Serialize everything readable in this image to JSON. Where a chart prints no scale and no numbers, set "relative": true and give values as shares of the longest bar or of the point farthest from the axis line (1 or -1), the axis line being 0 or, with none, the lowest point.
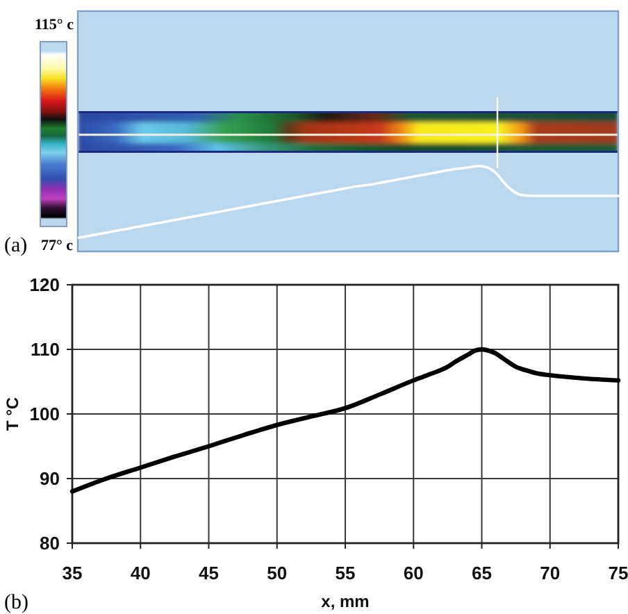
{
  "chart_data": [
    {
      "type": "line",
      "relative": true,
      "annotations": [
        "115° c",
        "77° c",
        "(a)"
      ],
      "color": "#ffffff",
      "categories": [
        null,
        null,
        null,
        null,
        null,
        null,
        null,
        null,
        null,
        null,
        null,
        null,
        null,
        null,
        null,
        null,
        null,
        null,
        null,
        null,
        null,
        null,
        null,
        null,
        null,
        null,
        null,
        null,
        null,
        null,
        null,
        null,
        null,
        null,
        null,
        null,
        null,
        null,
        null,
        null
      ],
      "values": [
        0.16,
        0.19,
        0.22,
        0.25,
        0.28,
        0.31,
        0.34,
        0.37,
        0.4,
        0.43,
        0.46,
        0.49,
        0.52,
        0.55,
        0.58,
        0.61,
        0.64,
        0.67,
        0.7,
        0.73,
        0.76,
        0.78,
        0.81,
        0.84,
        0.87,
        0.9,
        0.93,
        0.96,
        0.98,
        1,
        0.94,
        0.76,
        0.66,
        0.65,
        0.65,
        0.65,
        0.65,
        0.65,
        0.65,
        0.65
      ]
    },
    {
      "type": "line",
      "xlabel": "x, mm",
      "ylabel": "T °C",
      "annotations": [
        "(b)"
      ],
      "x": [
        35,
        37.5,
        40,
        42.5,
        45,
        47.5,
        50,
        52.5,
        55,
        57.5,
        60,
        61,
        62.5,
        63,
        64,
        64.5,
        65,
        65.5,
        66,
        66.5,
        67.5,
        68.5,
        69,
        70,
        72.5,
        75
      ],
      "values": [
        88,
        90,
        91.7,
        93.4,
        95,
        96.7,
        98.3,
        99.6,
        100.9,
        103,
        105.2,
        106,
        107.3,
        108,
        109.2,
        109.8,
        110,
        109.8,
        109.4,
        108.7,
        107.3,
        106.6,
        106.3,
        106,
        105.5,
        105.2
      ],
      "color": "#000000",
      "xlim": [
        35,
        75
      ],
      "xticks": [
        35,
        40,
        45,
        50,
        55,
        60,
        65,
        70,
        75
      ],
      "ylim": [
        80,
        120
      ],
      "yticks": [
        80,
        90,
        100,
        110,
        120
      ],
      "grid": true
    }
  ]
}
